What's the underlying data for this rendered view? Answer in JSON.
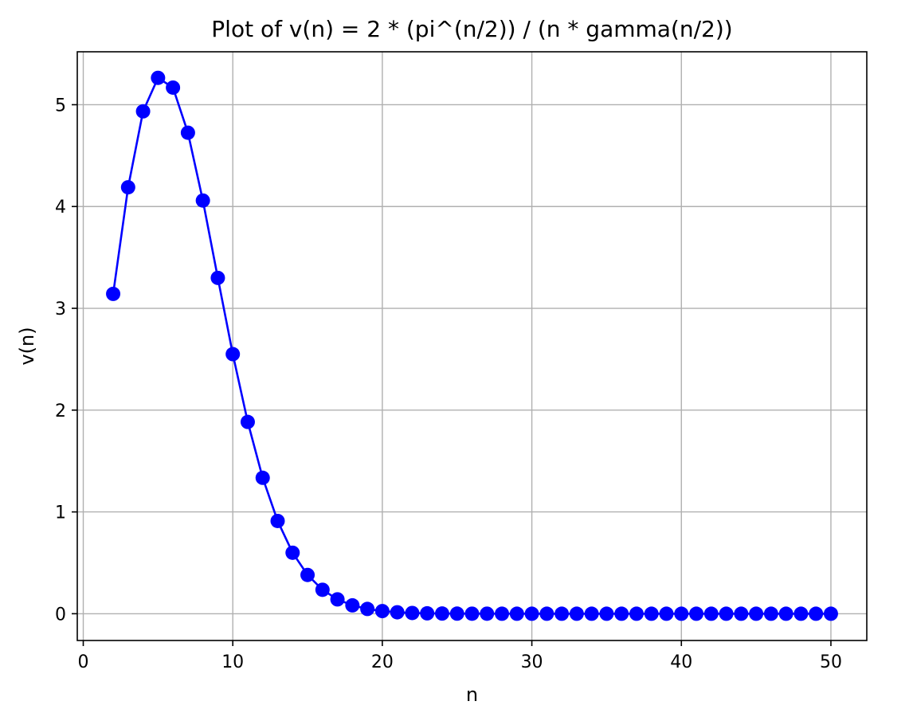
{
  "chart_data": {
    "type": "line",
    "title": "Plot of v(n) = 2 * (pi^(n/2)) / (n * gamma(n/2))",
    "xlabel": "n",
    "ylabel": "v(n)",
    "xlim": [
      -0.4,
      52.4
    ],
    "ylim": [
      -0.263,
      5.52
    ],
    "xticks": [
      0,
      10,
      20,
      30,
      40,
      50
    ],
    "xtick_labels": [
      "0",
      "10",
      "20",
      "30",
      "40",
      "50"
    ],
    "yticks": [
      0,
      1,
      2,
      3,
      4,
      5
    ],
    "ytick_labels": [
      "0",
      "1",
      "2",
      "3",
      "4",
      "5"
    ],
    "grid": true,
    "series": [
      {
        "color": "#0000ff",
        "marker": "circle",
        "x": [
          2,
          3,
          4,
          5,
          6,
          7,
          8,
          9,
          10,
          11,
          12,
          13,
          14,
          15,
          16,
          17,
          18,
          19,
          20,
          21,
          22,
          23,
          24,
          25,
          26,
          27,
          28,
          29,
          30,
          31,
          32,
          33,
          34,
          35,
          36,
          37,
          38,
          39,
          40,
          41,
          42,
          43,
          44,
          45,
          46,
          47,
          48,
          49,
          50
        ],
        "values": [
          3.142,
          4.189,
          4.935,
          5.264,
          5.168,
          4.725,
          4.059,
          3.299,
          2.55,
          1.884,
          1.335,
          0.911,
          0.599,
          0.381,
          0.235,
          0.141,
          0.082,
          0.047,
          0.026,
          0.014,
          0.007,
          0.004,
          0.002,
          0.001,
          0.0005,
          0.0003,
          0.0001,
          0.0001,
          2e-05,
          1e-05,
          0.0,
          0.0,
          0.0,
          0.0,
          0.0,
          0.0,
          0.0,
          0.0,
          0.0,
          0.0,
          0.0,
          0.0,
          0.0,
          0.0,
          0.0,
          0.0,
          0.0,
          0.0,
          0.0
        ]
      }
    ]
  }
}
